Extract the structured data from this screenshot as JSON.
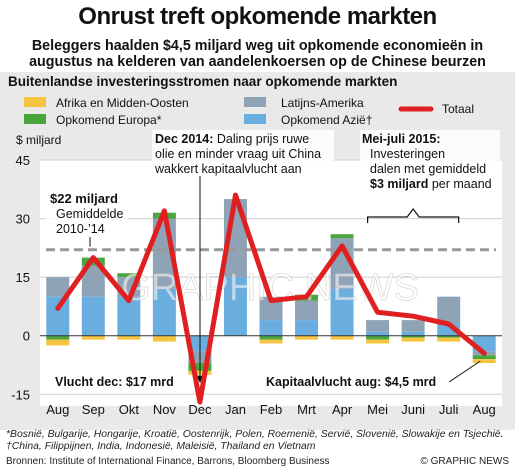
{
  "header": {
    "title": "Onrust treft opkomende markten",
    "subtitle": "Beleggers haalden $4,5 miljard weg uit opkomende economieën in augustus na kelderen van aandelenkoersen op de Chinese beurzen"
  },
  "chart_data": {
    "type": "bar",
    "title": "Buitenlandse investeringsstromen naar opkomende markten",
    "ylabel": "$ miljard",
    "ylim": [
      -18,
      45
    ],
    "yticks": [
      45,
      30,
      15,
      0,
      -15
    ],
    "ytick_labels": [
      "45",
      "30",
      "15",
      "0",
      "-15"
    ],
    "categories": [
      "Aug",
      "Sep",
      "Okt",
      "Nov",
      "Dec",
      "Jan",
      "Feb",
      "Mrt",
      "Apr",
      "Mei",
      "Juni",
      "Juli",
      "Aug"
    ],
    "stacked": true,
    "series": [
      {
        "name": "Afrika en Midden-Oosten",
        "color": "#f5c542",
        "values": [
          -1.5,
          -1,
          -1,
          -1.5,
          -1,
          0,
          -1,
          -1,
          -1,
          -1,
          -1,
          -1,
          -1
        ]
      },
      {
        "name": "Opkomend Europa*",
        "color": "#4aa63c",
        "values": [
          -1,
          2,
          1,
          1.5,
          -2,
          0,
          -1,
          1.5,
          1,
          -1,
          -0.5,
          -0.5,
          -1
        ]
      },
      {
        "name": "Latijns-Amerika",
        "color": "#8fa3b6",
        "values": [
          5,
          8,
          5,
          18,
          -3,
          20,
          6,
          5,
          13,
          3,
          3,
          7,
          -1
        ]
      },
      {
        "name": "Opkomend Azië†",
        "color": "#6aaee0",
        "values": [
          10,
          10,
          10,
          12,
          -4,
          15,
          4,
          4,
          12,
          1,
          1,
          3,
          -4
        ]
      },
      {
        "name": "Totaal",
        "type": "line",
        "color": "#e02020",
        "values": [
          7,
          20,
          9,
          32,
          -17,
          36,
          9,
          10,
          23,
          6,
          5,
          3,
          -4.5
        ]
      }
    ],
    "reference_line": {
      "value": 22,
      "style": "dashed"
    },
    "legend_position": "top",
    "annotations": {
      "avg": {
        "l1": "$22 miljard",
        "l2": "Gemiddelde",
        "l3": "2010-’14"
      },
      "dec": {
        "l1": "Dec 2014:",
        "l1b": " Daling prijs ruwe",
        "l2": "olie en minder vraag uit China",
        "l3": "wakkert kapitaalvlucht aan"
      },
      "may": {
        "l1": "Mei-juli 2015:",
        "l2": "Investeringen",
        "l3": "dalen met gemiddeld",
        "l4a": "$3 miljard",
        "l4b": " per maand"
      },
      "vlucht_dec": "Vlucht dec: $17 mrd",
      "vlucht_aug": "Kapitaalvlucht aug: $4,5 mrd"
    },
    "watermark": "GRAPHIC NEWS"
  },
  "footer": {
    "footnote": "*Bosnië, Bulgarije, Hongarije, Kroatië, Oostenrijk, Polen, Roemenië, Servië, Slovenië, Slowakije en Tsjechië. †China, Filippijnen, India, Indonesië, Maleisië, Thailand en Vietnam",
    "source": "Bronnen: Institute of International Finance, Barrons, Bloomberg Business",
    "credit": "© GRAPHIC NEWS"
  }
}
